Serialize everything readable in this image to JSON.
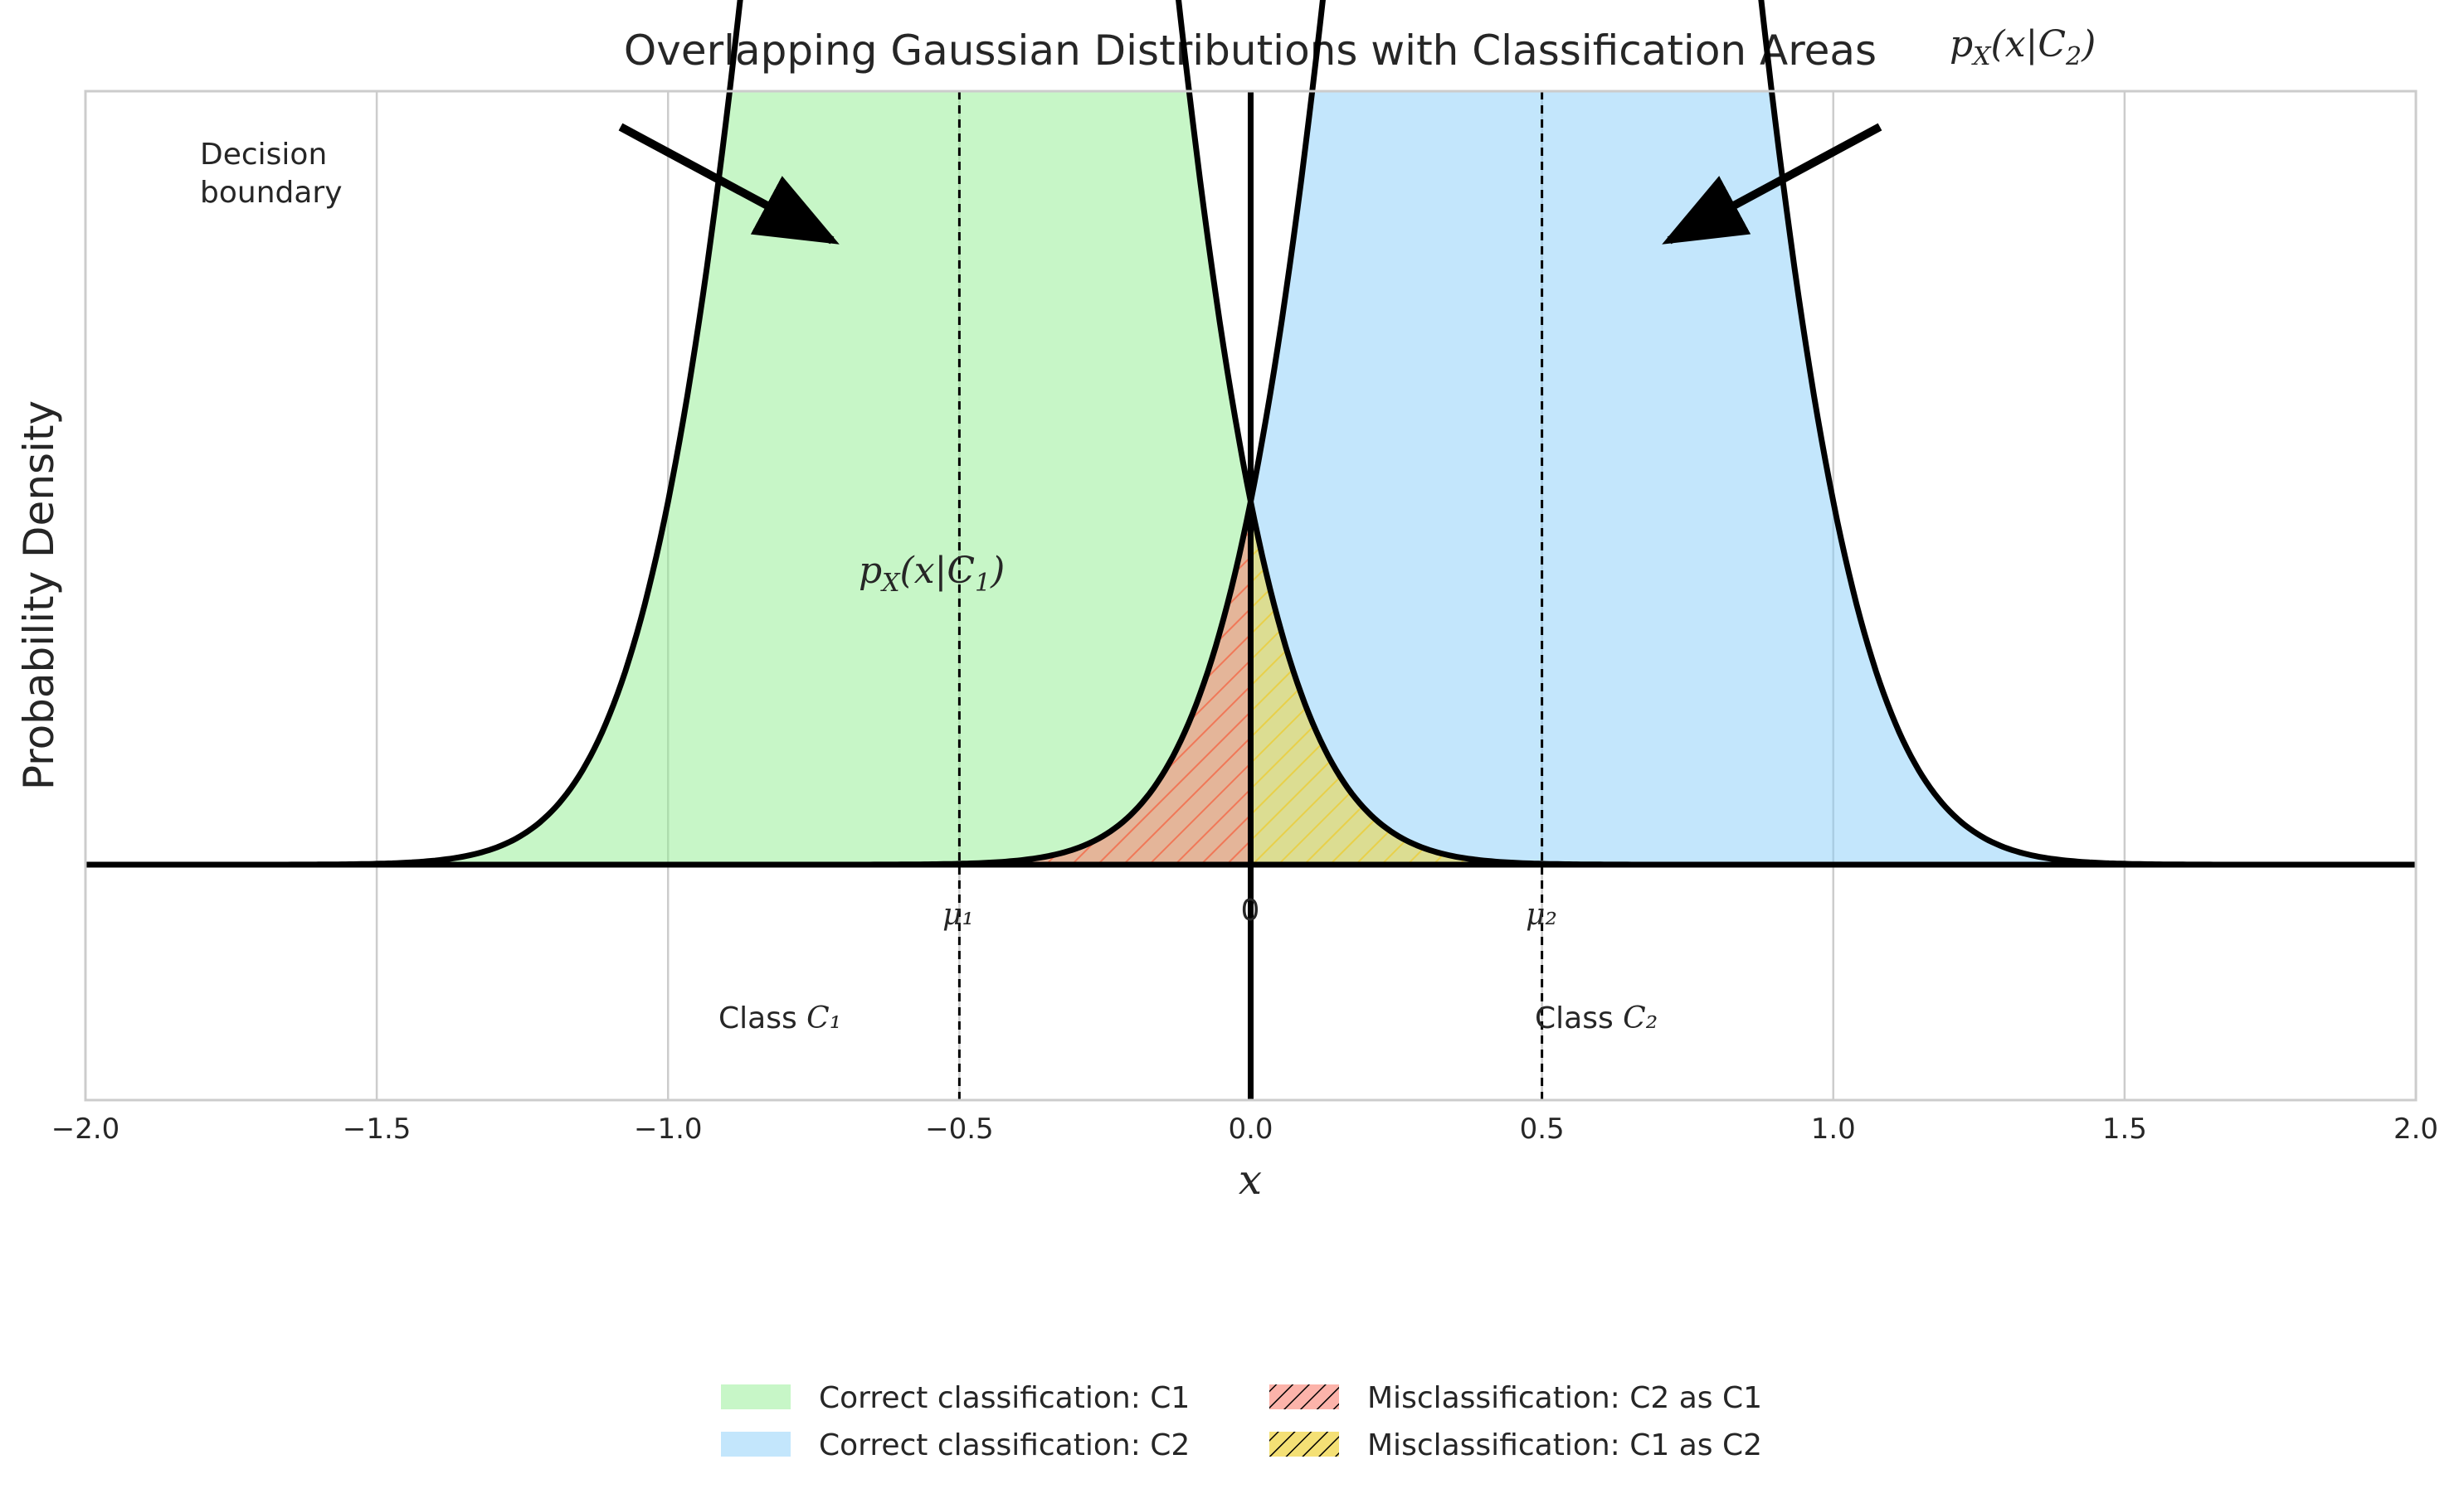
{
  "chart_data": {
    "type": "area",
    "title": "Overlapping Gaussian Distributions with Classification Areas",
    "xlabel": "x",
    "ylabel": "Probability Density",
    "xlim": [
      -2.0,
      2.0
    ],
    "ylim": [
      -0.14,
      0.46
    ],
    "grid": true,
    "xticks": [
      -2.0,
      -1.5,
      -1.0,
      -0.5,
      0.0,
      0.5,
      1.0,
      1.5,
      2.0
    ],
    "xtick_labels": [
      "−2.0",
      "−1.5",
      "−1.0",
      "−0.5",
      "0.0",
      "0.5",
      "1.0",
      "1.5",
      "2.0"
    ],
    "decision_boundary": 0.0,
    "series": [
      {
        "name": "p_X(x|C1)",
        "mean": -0.5,
        "std": 0.25,
        "color": "#000000"
      },
      {
        "name": "p_X(x|C2)",
        "mean": 0.5,
        "std": 0.25,
        "color": "#000000"
      }
    ],
    "regions": [
      {
        "name": "Correct classification: C1",
        "color": "#90ee90",
        "hatch": false,
        "x_range": [
          -2.0,
          0.0
        ]
      },
      {
        "name": "Correct classification: C2",
        "color": "#87cefa",
        "hatch": false,
        "x_range": [
          0.0,
          2.0
        ]
      },
      {
        "name": "Misclassification: C2 as C1",
        "color": "#fa8072",
        "hatch": true,
        "x_range": [
          -2.0,
          0.0
        ]
      },
      {
        "name": "Misclassification: C1 as C2",
        "color": "#f0d43a",
        "hatch": true,
        "x_range": [
          0.0,
          2.0
        ]
      }
    ],
    "annotations": {
      "decision_boundary_label": [
        "Decision",
        "boundary"
      ],
      "curve1_label": "p_X(x|C1)",
      "curve2_label": "p_X(x|C2)",
      "mu1": "μ₁",
      "mu2": "μ₂",
      "zero": "0",
      "class1_prefix": "Class ",
      "class1_symbol": "C₁",
      "class2_prefix": "Class ",
      "class2_symbol": "C₂"
    },
    "legend": {
      "placement": "bottom-center",
      "entries": [
        "Correct classification: C1",
        "Correct classification: C2",
        "Misclassification: C2 as C1",
        "Misclassification: C1 as C2"
      ]
    }
  }
}
